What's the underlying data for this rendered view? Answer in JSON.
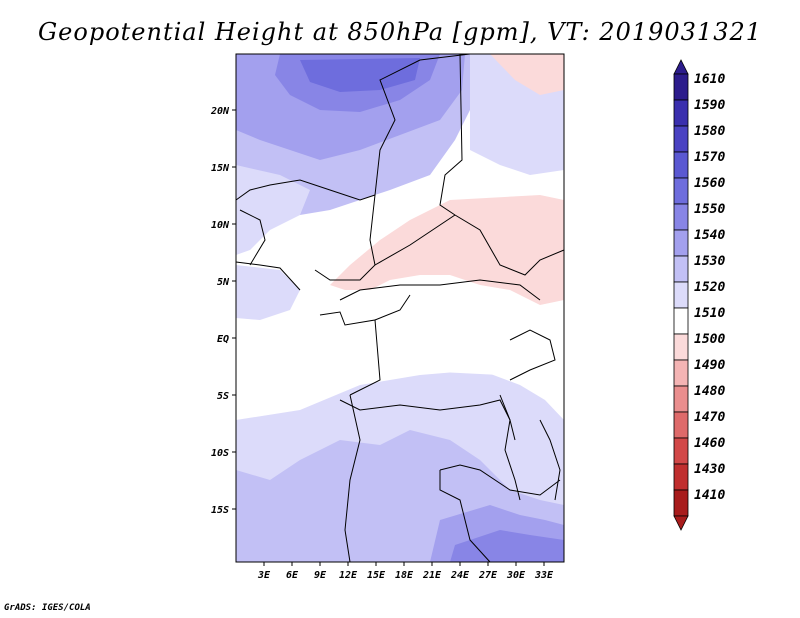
{
  "title": "Geopotential Height at 850hPa [gpm], VT: 2019031321",
  "footer": "GrADS: IGES/COLA",
  "map": {
    "lat_labels": [
      "20N",
      "15N",
      "10N",
      "5N",
      "EQ",
      "5S",
      "10S",
      "15S"
    ],
    "lon_labels": [
      "3E",
      "6E",
      "9E",
      "12E",
      "15E",
      "18E",
      "21E",
      "24E",
      "27E",
      "30E",
      "33E"
    ]
  },
  "colorbar": {
    "levels": [
      "1610",
      "1590",
      "1580",
      "1570",
      "1560",
      "1550",
      "1540",
      "1530",
      "1520",
      "1510",
      "1500",
      "1490",
      "1480",
      "1470",
      "1460",
      "1430",
      "1410"
    ],
    "colors": [
      "#2c1c8c",
      "#3a2fae",
      "#4a42c2",
      "#5a58d2",
      "#6e6ddd",
      "#8885e6",
      "#a3a0ee",
      "#c2c0f5",
      "#dcdbfa",
      "#ffffff",
      "#fbdada",
      "#f4b4b4",
      "#ea8e8e",
      "#de6a6a",
      "#d24848",
      "#c02e2e",
      "#a81c1c"
    ]
  }
}
